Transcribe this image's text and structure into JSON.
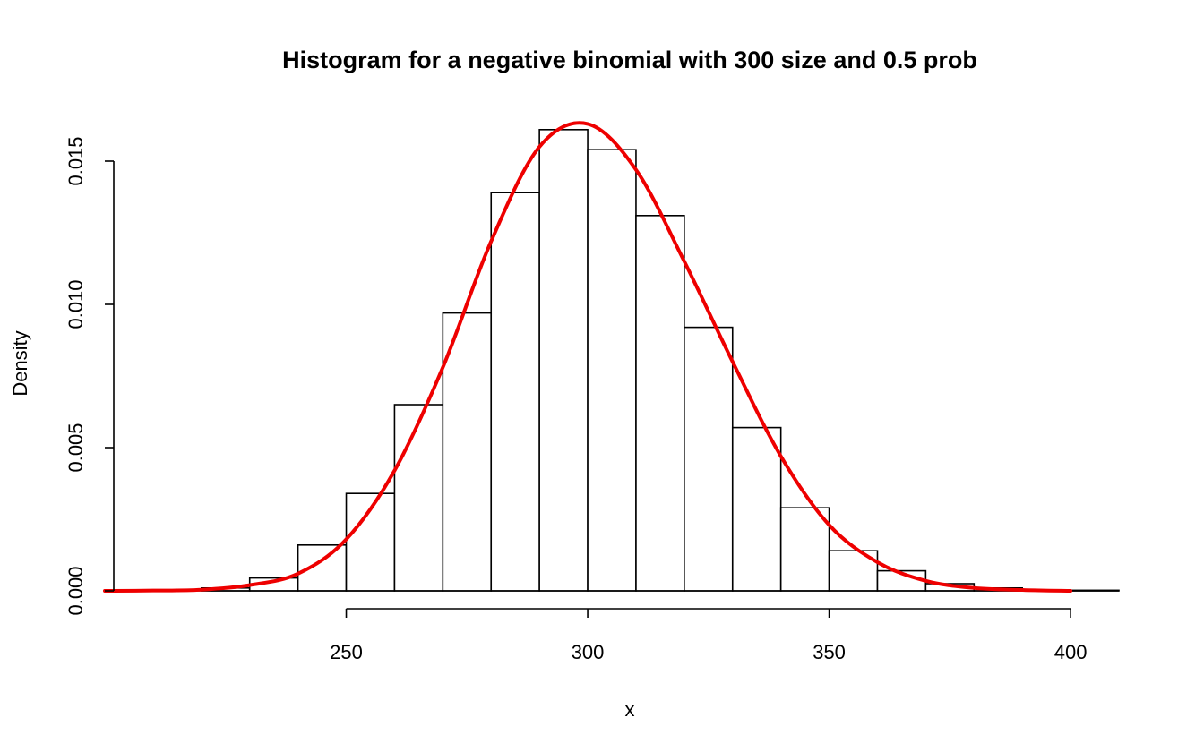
{
  "chart_data": {
    "type": "bar",
    "title": "Histogram for a negative binomial with 300 size and 0.5 prob",
    "xlabel": "x",
    "ylabel": "Density",
    "xlim": [
      200,
      410
    ],
    "ylim": [
      0,
      0.0165
    ],
    "x_ticks": [
      250,
      300,
      350,
      400
    ],
    "x_tick_labels": [
      "250",
      "300",
      "350",
      "400"
    ],
    "y_ticks": [
      0,
      0.005,
      0.01,
      0.015
    ],
    "y_tick_labels": [
      "0.000",
      "0.005",
      "0.010",
      "0.015"
    ],
    "grid": false,
    "bins": [
      {
        "x0": 220,
        "x1": 230,
        "value": 0.0001
      },
      {
        "x0": 230,
        "x1": 240,
        "value": 0.00045
      },
      {
        "x0": 240,
        "x1": 250,
        "value": 0.0016
      },
      {
        "x0": 250,
        "x1": 260,
        "value": 0.0034
      },
      {
        "x0": 260,
        "x1": 270,
        "value": 0.0065
      },
      {
        "x0": 270,
        "x1": 280,
        "value": 0.0097
      },
      {
        "x0": 280,
        "x1": 290,
        "value": 0.0139
      },
      {
        "x0": 290,
        "x1": 300,
        "value": 0.0161
      },
      {
        "x0": 300,
        "x1": 310,
        "value": 0.0154
      },
      {
        "x0": 310,
        "x1": 320,
        "value": 0.0131
      },
      {
        "x0": 320,
        "x1": 330,
        "value": 0.0092
      },
      {
        "x0": 330,
        "x1": 340,
        "value": 0.0057
      },
      {
        "x0": 340,
        "x1": 350,
        "value": 0.0029
      },
      {
        "x0": 350,
        "x1": 360,
        "value": 0.0014
      },
      {
        "x0": 360,
        "x1": 370,
        "value": 0.0007
      },
      {
        "x0": 370,
        "x1": 380,
        "value": 0.00025
      },
      {
        "x0": 380,
        "x1": 390,
        "value": 0.0001
      },
      {
        "x0": 390,
        "x1": 400,
        "value": 3e-05
      },
      {
        "x0": 400,
        "x1": 410,
        "value": 2e-05
      }
    ],
    "density_curve": {
      "color": "#ee0000",
      "x": [
        200,
        210,
        220,
        230,
        240,
        250,
        260,
        270,
        280,
        290,
        300,
        310,
        320,
        330,
        340,
        350,
        360,
        370,
        380,
        390,
        400
      ],
      "y": [
        0.0,
        1e-05,
        4e-05,
        0.0002,
        0.0006,
        0.0018,
        0.0042,
        0.0078,
        0.0122,
        0.0155,
        0.0163,
        0.0147,
        0.0115,
        0.008,
        0.0047,
        0.0023,
        0.001,
        0.00035,
        0.0001,
        3e-05,
        0.0
      ]
    }
  }
}
